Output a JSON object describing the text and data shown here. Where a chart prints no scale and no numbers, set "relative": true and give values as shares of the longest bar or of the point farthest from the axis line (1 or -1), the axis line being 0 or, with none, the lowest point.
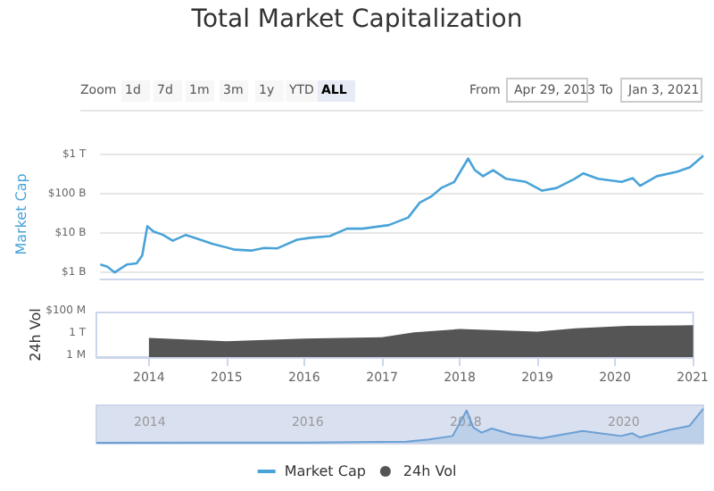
{
  "chart_data": [
    {
      "type": "line",
      "title": "Total Market Capitalization",
      "ylabel": "Market Cap",
      "annotations": [
        "Zoom",
        "1d",
        "7d",
        "1m",
        "3m",
        "1y",
        "YTD",
        "ALL",
        "From",
        "Apr 29, 2013",
        "To",
        "Jan 3, 2021"
      ],
      "x": [
        "2013-04-29",
        "2013-06-01",
        "2013-07-05",
        "2013-09-01",
        "2013-10-15",
        "2013-11-10",
        "2013-12-04",
        "2014-01-01",
        "2014-02-15",
        "2014-04-01",
        "2014-06-01",
        "2014-08-01",
        "2014-10-01",
        "2015-01-15",
        "2015-04-01",
        "2015-06-01",
        "2015-08-01",
        "2015-11-01",
        "2016-01-01",
        "2016-04-01",
        "2016-06-20",
        "2016-09-01",
        "2017-01-01",
        "2017-04-01",
        "2017-05-25",
        "2017-07-15",
        "2017-09-01",
        "2017-11-01",
        "2018-01-05",
        "2018-02-05",
        "2018-03-15",
        "2018-05-01",
        "2018-07-01",
        "2018-10-01",
        "2018-12-15",
        "2019-02-20",
        "2019-05-15",
        "2019-06-25",
        "2019-09-01",
        "2019-12-20",
        "2020-02-10",
        "2020-03-15",
        "2020-06-01",
        "2020-09-01",
        "2020-11-01",
        "2021-01-03"
      ],
      "series": [
        {
          "name": "Market Cap",
          "color": "#4aa3d8",
          "values": [
            1600000000.0,
            1400000000.0,
            1000000000.0,
            1600000000.0,
            1700000000.0,
            2700000000.0,
            15000000000.0,
            11000000000.0,
            9000000000.0,
            6400000000.0,
            9000000000.0,
            7000000000.0,
            5400000000.0,
            3800000000.0,
            3600000000.0,
            4200000000.0,
            4100000000.0,
            6800000000.0,
            7600000000.0,
            8400000000.0,
            13000000000.0,
            13000000000.0,
            16000000000.0,
            25000000000.0,
            60000000000.0,
            84000000000.0,
            140000000000.0,
            200000000000.0,
            790000000000.0,
            400000000000.0,
            280000000000.0,
            400000000000.0,
            240000000000.0,
            200000000000.0,
            120000000000.0,
            140000000000.0,
            240000000000.0,
            330000000000.0,
            240000000000.0,
            200000000000.0,
            250000000000.0,
            160000000000.0,
            280000000000.0,
            360000000000.0,
            470000000000.0,
            930000000000.0
          ]
        }
      ],
      "log": "y",
      "ylim": [
        700000000.0,
        1300000000000.0
      ],
      "yticks": [
        {
          "value": 1000000000.0,
          "label": "$1 B"
        },
        {
          "value": 10000000000.0,
          "label": "$10 B"
        },
        {
          "value": 100000000000.0,
          "label": "$100 B"
        },
        {
          "value": 1000000000000.0,
          "label": "$1 T"
        }
      ],
      "xlim": [
        "2013-04-29",
        "2021-01-03"
      ],
      "tick_labels": "y",
      "grid": "y",
      "legend": "bottom",
      "marker": "none"
    },
    {
      "type": "area",
      "ylabel": "24h Vol",
      "relative": true,
      "annotations": [
        "$100 M",
        "1 T",
        "1 M"
      ],
      "x": [
        "2014-01-01",
        "2015-01-01",
        "2016-01-01",
        "2017-01-01",
        "2017-06-01",
        "2018-01-01",
        "2019-01-01",
        "2019-07-01",
        "2020-03-01",
        "2021-01-03"
      ],
      "series": [
        {
          "name": "24h Vol",
          "color": "#555555",
          "values": [
            0.6,
            0.5,
            0.58,
            0.62,
            0.78,
            0.88,
            0.8,
            0.9,
            0.98,
            1
          ]
        }
      ],
      "xlim": [
        "2013-04-29",
        "2021-01-03"
      ],
      "xticks": [
        "2014",
        "2015",
        "2016",
        "2017",
        "2018",
        "2019",
        "2020",
        "2021"
      ],
      "grid": false,
      "legend": "bottom"
    },
    {
      "type": "area",
      "relative": true,
      "x": [
        "2013-04-29",
        "2016-01-01",
        "2017-04-01",
        "2017-07-15",
        "2017-11-01",
        "2018-01-05",
        "2018-02-05",
        "2018-03-15",
        "2018-05-01",
        "2018-08-01",
        "2018-12-15",
        "2019-06-25",
        "2019-12-20",
        "2020-02-10",
        "2020-03-15",
        "2020-08-01",
        "2020-11-01",
        "2021-01-03"
      ],
      "series": [
        {
          "color": "#6a9fd4",
          "values": [
            0.003,
            0.008,
            0.03,
            0.1,
            0.2,
            0.95,
            0.45,
            0.3,
            0.42,
            0.25,
            0.13,
            0.35,
            0.2,
            0.28,
            0.16,
            0.38,
            0.5,
            1
          ]
        }
      ],
      "xlim": [
        "2013-04-29",
        "2021-01-03"
      ],
      "xticks": [
        "2014",
        "2016",
        "2018",
        "2020"
      ],
      "grid": false
    }
  ]
}
